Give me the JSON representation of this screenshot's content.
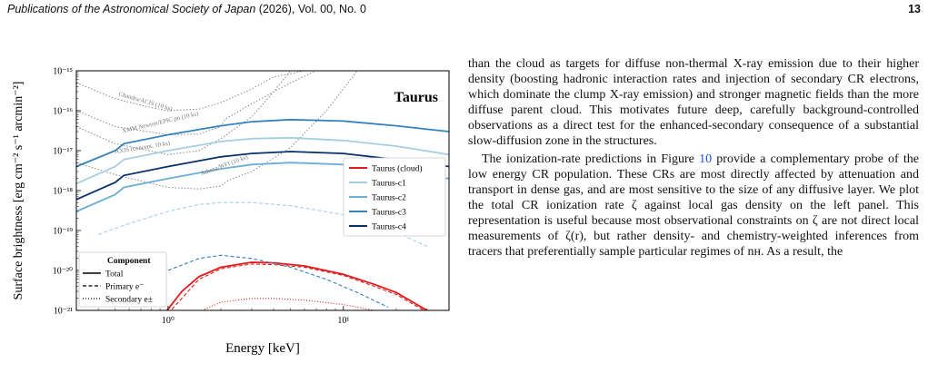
{
  "header": {
    "journal": "Publications of the Astronomical Society of Japan",
    "volume_info": " (2026), Vol. 00, No. 0",
    "page_number": "13"
  },
  "chart_data": {
    "type": "line",
    "title": "Taurus",
    "xlabel": "Energy [keV]",
    "ylabel": "Surface brightness [erg cm⁻² s⁻¹ arcmin⁻²]",
    "xscale": "log",
    "yscale": "log",
    "xlim": [
      0.3,
      40
    ],
    "ylim": [
      1e-21,
      1e-15
    ],
    "xtick_labels": [
      "10⁰",
      "10¹"
    ],
    "ytick_labels": [
      "10⁻²¹",
      "10⁻²⁰",
      "10⁻¹⁹",
      "10⁻¹⁸",
      "10⁻¹⁷",
      "10⁻¹⁶",
      "10⁻¹⁵"
    ],
    "legend": {
      "placement": "right",
      "entries": [
        "Taurus (cloud)",
        "Taurus-c1",
        "Taurus-c2",
        "Taurus-c3",
        "Taurus-c4"
      ]
    },
    "component_legend": {
      "title": "Component",
      "placement": "bottom-left",
      "entries": [
        "Total",
        "Primary e⁻",
        "Secondary e±"
      ]
    },
    "sensitivity_labels": [
      "Chandra/ACIS (10 ks)",
      "XMM Newton/EPIC pn (10 ks)",
      "AXIS (concept, 10 ks)",
      "Athena/WFI (10 ks)"
    ],
    "colors": {
      "cloud": "#e31a1c",
      "c1": "#a6cee3",
      "c2": "#6baed6",
      "c3": "#3182bd",
      "c4": "#08306b",
      "sensitivity": "#888888"
    },
    "series": [
      {
        "name": "Taurus (cloud)",
        "component": "Total",
        "x": [
          0.9,
          1.2,
          1.5,
          2,
          3,
          4,
          6,
          10,
          15,
          20,
          30
        ],
        "y": [
          6e-22,
          3e-21,
          7e-21,
          1.2e-20,
          1.6e-20,
          1.55e-20,
          1.3e-20,
          8e-21,
          4.5e-21,
          2.8e-21,
          1e-21
        ]
      },
      {
        "name": "Taurus (cloud)",
        "component": "Primary e⁻",
        "x": [
          0.9,
          1.5,
          2,
          3,
          4,
          6,
          10,
          15,
          20,
          30
        ],
        "y": [
          5e-22,
          6e-21,
          1.1e-20,
          1.45e-20,
          1.4e-20,
          1.2e-20,
          7.5e-21,
          4e-21,
          2.5e-21,
          9e-22
        ]
      },
      {
        "name": "Taurus (cloud)",
        "component": "Secondary e±",
        "x": [
          1.2,
          2,
          3,
          4,
          6,
          10,
          15,
          20
        ],
        "y": [
          6e-22,
          1.6e-21,
          2e-21,
          2e-21,
          1.8e-21,
          1.4e-21,
          1e-21,
          7e-22
        ]
      },
      {
        "name": "Taurus-c1",
        "component": "Total",
        "x": [
          0.3,
          0.5,
          0.56,
          1,
          2,
          3,
          5,
          10,
          20,
          40
        ],
        "y": [
          1.5e-18,
          4e-18,
          6e-18,
          1e-17,
          1.7e-17,
          2e-17,
          2.1e-17,
          1.8e-17,
          1.3e-17,
          8e-18
        ]
      },
      {
        "name": "Taurus-c2",
        "component": "Total",
        "x": [
          0.3,
          0.5,
          0.56,
          1,
          2,
          3,
          5,
          10,
          20,
          40
        ],
        "y": [
          3e-19,
          8e-19,
          1.2e-18,
          2e-18,
          3.5e-18,
          4.5e-18,
          5e-18,
          4.5e-18,
          3.2e-18,
          2e-18
        ]
      },
      {
        "name": "Taurus-c3",
        "component": "Total",
        "x": [
          0.3,
          0.5,
          0.56,
          1,
          2,
          3,
          5,
          10,
          20,
          40
        ],
        "y": [
          4e-18,
          1e-17,
          1.5e-17,
          2.5e-17,
          4.2e-17,
          5.3e-17,
          6e-17,
          5.5e-17,
          4.2e-17,
          3e-17
        ]
      },
      {
        "name": "Taurus-c4",
        "component": "Total",
        "x": [
          0.3,
          0.5,
          0.56,
          1,
          2,
          3,
          5,
          10,
          20,
          40
        ],
        "y": [
          6e-19,
          1.6e-18,
          2.4e-18,
          4e-18,
          7e-18,
          8.5e-18,
          9.5e-18,
          8.5e-18,
          6e-18,
          4e-18
        ]
      },
      {
        "name": "Taurus-c1",
        "component": "Primary e⁻",
        "x": [
          0.4,
          0.6,
          1,
          1.5,
          2,
          3,
          5,
          10,
          20,
          30
        ],
        "y": [
          8e-20,
          1.5e-19,
          3e-19,
          4.5e-19,
          5e-19,
          5e-19,
          4.2e-19,
          2.5e-19,
          9e-20,
          4e-20
        ]
      },
      {
        "name": "Taurus-c3",
        "component": "Primary e⁻",
        "x": [
          1,
          1.5,
          2,
          3,
          5,
          8,
          12,
          18
        ],
        "y": [
          1e-20,
          2e-20,
          2.4e-20,
          2e-20,
          1.2e-20,
          6e-21,
          2.8e-21,
          1.2e-21
        ]
      }
    ],
    "sensitivity_curves": [
      {
        "name": "Chandra/ACIS (10 ks)",
        "x": [
          0.3,
          0.5,
          0.8,
          1,
          1.5,
          2,
          3,
          4,
          6
        ],
        "y": [
          5e-16,
          2e-16,
          1.2e-16,
          1e-16,
          1.1e-16,
          1.6e-16,
          3.5e-16,
          7e-16,
          1e-15
        ]
      },
      {
        "name": "XMM Newton/EPIC pn (10 ks)",
        "x": [
          0.3,
          0.5,
          1,
          1.5,
          2,
          2.1,
          3,
          5,
          7
        ],
        "y": [
          1e-16,
          4e-17,
          2.5e-17,
          2.6e-17,
          4e-17,
          6e-17,
          1.5e-16,
          5e-16,
          1e-15
        ]
      },
      {
        "name": "AXIS (concept, 10 ks)",
        "x": [
          0.3,
          0.5,
          1,
          1.5,
          2,
          3,
          4,
          5
        ],
        "y": [
          4e-17,
          1.5e-17,
          8e-18,
          1e-17,
          2e-17,
          7e-17,
          3e-16,
          1e-15
        ]
      },
      {
        "name": "Athena/WFI (10 ks)",
        "x": [
          0.3,
          0.5,
          1,
          1.5,
          2,
          2.2,
          3,
          5,
          8,
          12
        ],
        "y": [
          5e-18,
          2.5e-18,
          1.2e-18,
          1.1e-18,
          1.3e-18,
          1.8e-18,
          3e-18,
          1.2e-17,
          1e-16,
          1e-15
        ]
      }
    ]
  },
  "body": {
    "p1": "than the cloud as targets for diffuse non-thermal X-ray emission due to their higher density (boosting hadronic interaction rates and injection of secondary CR electrons, which dominate the clump X-ray emission) and stronger magnetic fields than the more diffuse parent cloud. This motivates future deep, carefully background-controlled observations as a direct test for the enhanced-secondary consequence of a substantial slow-diffusion zone in the structures.",
    "p2_a": "The ionization-rate predictions in Figure ",
    "p2_ref": "10",
    "p2_b": " provide a complementary probe of the low energy CR population. These CRs are most directly affected by attenuation and transport in dense gas, and are most sensitive to the size of any diffusive layer. We plot the total CR ionization rate ζ against local gas density on the left panel. This representation is useful because most observational constraints on ζ are not direct local measurements of ζ(r), but rather density- and chemistry-weighted inferences from tracers that preferentially sample particular regimes of nʜ. As a result, the"
  }
}
